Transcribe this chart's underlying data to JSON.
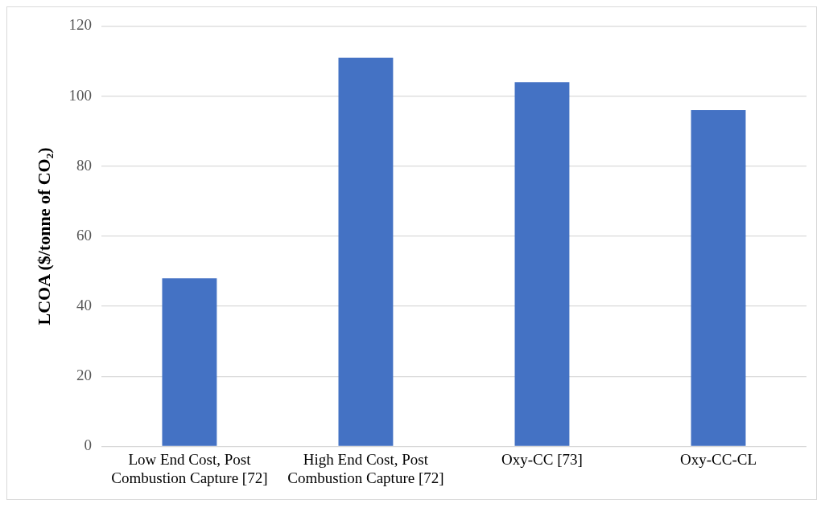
{
  "chart_data": {
    "type": "bar",
    "ylabel": "LCOA ($/tonne of CO₂)",
    "categories": [
      "Low End Cost, Post Combustion Capture [72]",
      "High End Cost, Post Combustion Capture [72]",
      "Oxy-CC [73]",
      "Oxy-CC-CL"
    ],
    "values": [
      48,
      111,
      104,
      96
    ],
    "color": "#4472c4",
    "ylim": [
      0,
      120
    ],
    "yticks": [
      0,
      20,
      40,
      60,
      80,
      100,
      120
    ],
    "grid": "y",
    "legend": false
  }
}
